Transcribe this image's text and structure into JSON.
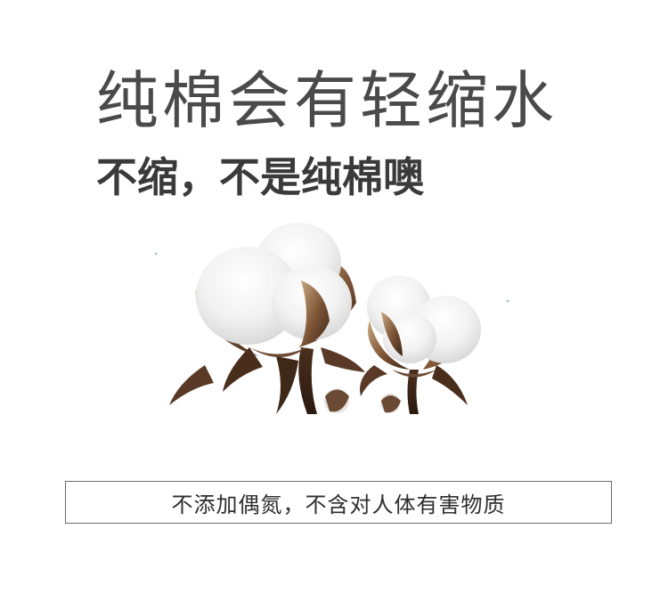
{
  "headline": "纯棉会有轻缩水",
  "subheadline": "不缩，不是纯棉噢",
  "image": {
    "subject": "cotton-bolls-illustration"
  },
  "notice": {
    "text": "不添加偶氮，不含对人体有害物质"
  },
  "colors": {
    "background": "#ffffff",
    "headline": "#4a4a4a",
    "subheadline": "#3a3a3a",
    "border": "#6a6a6a",
    "cotton_fiber": "#f4f4f4",
    "husk": "#6b4a34"
  }
}
